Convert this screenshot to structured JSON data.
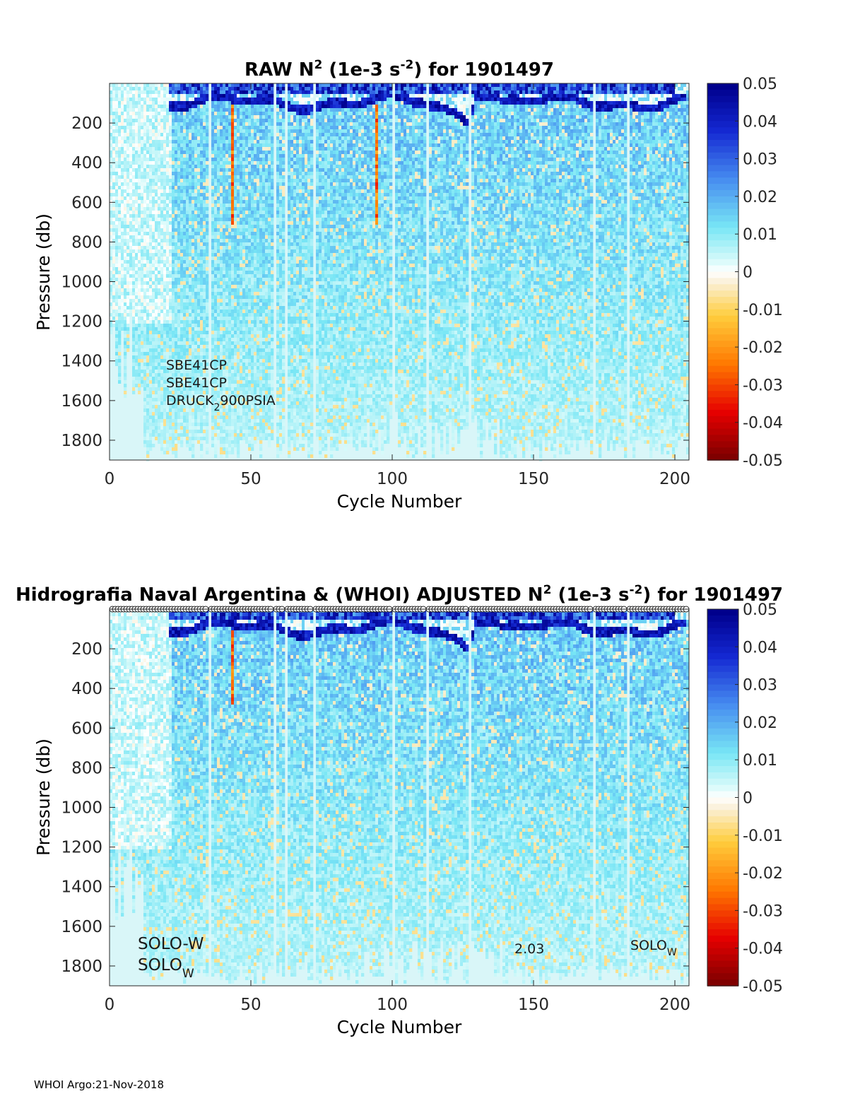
{
  "chart_data": [
    {
      "type": "heatmap",
      "title_main": "RAW N",
      "title_sup": "2",
      "title_mid": " (1e-3 s",
      "title_sup2": "-2",
      "title_end": ") for 1901497",
      "xlabel": "Cycle Number",
      "ylabel": "Pressure (db)",
      "xlim": [
        0,
        205
      ],
      "ylim": [
        1900,
        0
      ],
      "xticks": [
        0,
        50,
        100,
        150,
        200
      ],
      "yticks": [
        200,
        400,
        600,
        800,
        1000,
        1200,
        1400,
        1600,
        1800
      ],
      "colorbar": {
        "range": [
          -0.05,
          0.05
        ],
        "ticks": [
          "0.05",
          "0.04",
          "0.03",
          "0.02",
          "0.01",
          "0",
          "-0.01",
          "-0.02",
          "-0.03",
          "-0.04",
          "-0.05"
        ],
        "colormap": "jet-like with white at zero"
      },
      "gap_cycles": [
        35,
        58,
        62,
        72,
        100,
        112,
        127,
        171,
        183
      ],
      "sensor_labels": [
        "SBE41CP",
        "SBE41CP"
      ],
      "druck_main": "DRUCK",
      "druck_sub": "2",
      "druck_end": "900PSIA"
    },
    {
      "type": "heatmap",
      "title_main": "Hidrografia Naval Argentina & (WHOI)  ADJUSTED N",
      "title_sup": "2",
      "title_mid": " (1e-3 s",
      "title_sup2": "-2",
      "title_end": ") for 1901497",
      "xlabel": "Cycle Number",
      "ylabel": "Pressure (db)",
      "xlim": [
        0,
        205
      ],
      "ylim": [
        1900,
        0
      ],
      "xticks": [
        0,
        50,
        100,
        150,
        200
      ],
      "yticks": [
        200,
        400,
        600,
        800,
        1000,
        1200,
        1400,
        1600,
        1800
      ],
      "colorbar": {
        "range": [
          -0.05,
          0.05
        ],
        "ticks": [
          "0.05",
          "0.04",
          "0.03",
          "0.02",
          "0.01",
          "0",
          "-0.01",
          "-0.02",
          "-0.03",
          "-0.04",
          "-0.05"
        ],
        "colormap": "jet-like with white at zero"
      },
      "gap_cycles": [
        35,
        58,
        62,
        72,
        100,
        112,
        127,
        171,
        183
      ],
      "markers_row": "circles along top for each cycle",
      "annotations": {
        "solo_dash": "SOLO-W",
        "solo_main": "SOLO",
        "solo_sub": "W",
        "version": "2.03",
        "solo2_main": "SOLO",
        "solo2_sub": "W"
      }
    }
  ],
  "footer": "WHOI Argo:21-Nov-2018"
}
